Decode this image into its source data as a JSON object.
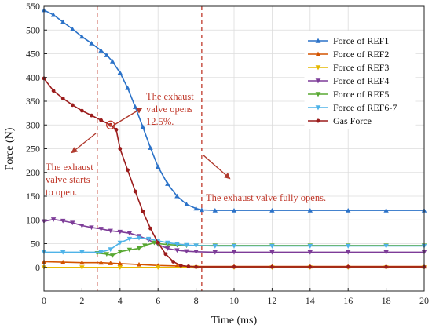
{
  "chart_data": {
    "type": "line",
    "xlabel": "Time (ms)",
    "ylabel": "Force (N)",
    "xlim": [
      0,
      20
    ],
    "ylim": [
      -50,
      550
    ],
    "xticks": [
      0,
      2,
      4,
      6,
      8,
      10,
      12,
      14,
      16,
      18,
      20
    ],
    "yticks": [
      0,
      50,
      100,
      150,
      200,
      250,
      300,
      350,
      400,
      450,
      500,
      550
    ],
    "grid": true,
    "legend_position": "top-right",
    "series": [
      {
        "name": "Force of REF1",
        "color": "#2b72c8",
        "marker": "triangle-up",
        "points": [
          [
            0,
            542
          ],
          [
            0.5,
            532
          ],
          [
            1,
            517
          ],
          [
            1.5,
            502
          ],
          [
            2,
            486
          ],
          [
            2.5,
            472
          ],
          [
            3,
            457
          ],
          [
            3.3,
            447
          ],
          [
            3.6,
            434
          ],
          [
            4,
            410
          ],
          [
            4.4,
            378
          ],
          [
            4.8,
            338
          ],
          [
            5.2,
            296
          ],
          [
            5.6,
            252
          ],
          [
            6,
            212
          ],
          [
            6.5,
            176
          ],
          [
            7,
            150
          ],
          [
            7.5,
            133
          ],
          [
            8,
            124
          ],
          [
            8.3,
            121
          ],
          [
            9,
            120
          ],
          [
            10,
            120
          ],
          [
            12,
            120
          ],
          [
            14,
            120
          ],
          [
            16,
            120
          ],
          [
            18,
            120
          ],
          [
            20,
            120
          ]
        ]
      },
      {
        "name": "Force of REF2",
        "color": "#d35400",
        "marker": "triangle-up",
        "points": [
          [
            0,
            12
          ],
          [
            1,
            11
          ],
          [
            2,
            10
          ],
          [
            3,
            10
          ],
          [
            3.5,
            9
          ],
          [
            4,
            8
          ],
          [
            5,
            6
          ],
          [
            6,
            4
          ],
          [
            7,
            3
          ],
          [
            8,
            2
          ],
          [
            10,
            2
          ],
          [
            12,
            2
          ],
          [
            14,
            2
          ],
          [
            16,
            2
          ],
          [
            18,
            2
          ],
          [
            20,
            2
          ]
        ]
      },
      {
        "name": "Force of REF3",
        "color": "#e6b800",
        "marker": "triangle-down",
        "points": [
          [
            0,
            0
          ],
          [
            2,
            0
          ],
          [
            4,
            0
          ],
          [
            6,
            0
          ],
          [
            8,
            0
          ],
          [
            10,
            0
          ],
          [
            12,
            0
          ],
          [
            14,
            0
          ],
          [
            16,
            0
          ],
          [
            18,
            0
          ],
          [
            20,
            0
          ]
        ]
      },
      {
        "name": "Force of REF4",
        "color": "#7d3c98",
        "marker": "triangle-down",
        "points": [
          [
            0,
            97
          ],
          [
            0.5,
            101
          ],
          [
            1,
            98
          ],
          [
            1.5,
            94
          ],
          [
            2,
            88
          ],
          [
            2.5,
            84
          ],
          [
            3,
            81
          ],
          [
            3.5,
            77
          ],
          [
            4,
            75
          ],
          [
            4.5,
            72
          ],
          [
            5,
            66
          ],
          [
            5.5,
            58
          ],
          [
            6,
            48
          ],
          [
            6.5,
            40
          ],
          [
            7,
            36
          ],
          [
            7.5,
            34
          ],
          [
            8,
            33
          ],
          [
            9,
            32
          ],
          [
            10,
            32
          ],
          [
            12,
            32
          ],
          [
            14,
            32
          ],
          [
            16,
            32
          ],
          [
            18,
            32
          ],
          [
            20,
            32
          ]
        ]
      },
      {
        "name": "Force of REF5",
        "color": "#58a832",
        "marker": "triangle-down",
        "points": [
          [
            2.8,
            30
          ],
          [
            3.3,
            28
          ],
          [
            3.6,
            25
          ],
          [
            4,
            33
          ],
          [
            4.5,
            37
          ],
          [
            5,
            40
          ],
          [
            5.3,
            46
          ],
          [
            5.8,
            52
          ],
          [
            6,
            50
          ],
          [
            6.5,
            48
          ],
          [
            7,
            47
          ],
          [
            7.5,
            46
          ],
          [
            8,
            46
          ],
          [
            9,
            46
          ],
          [
            10,
            46
          ],
          [
            12,
            46
          ],
          [
            14,
            46
          ],
          [
            16,
            46
          ],
          [
            18,
            46
          ],
          [
            20,
            46
          ]
        ]
      },
      {
        "name": "Force of REF6-7",
        "color": "#4fb3e8",
        "marker": "triangle-down",
        "points": [
          [
            0,
            32
          ],
          [
            1,
            32
          ],
          [
            2,
            32
          ],
          [
            3,
            32
          ],
          [
            3.5,
            38
          ],
          [
            4,
            52
          ],
          [
            4.5,
            60
          ],
          [
            5,
            62
          ],
          [
            5.5,
            60
          ],
          [
            6,
            56
          ],
          [
            6.5,
            52
          ],
          [
            7,
            49
          ],
          [
            7.5,
            47
          ],
          [
            8,
            46
          ],
          [
            9,
            45
          ],
          [
            10,
            45
          ],
          [
            12,
            45
          ],
          [
            14,
            45
          ],
          [
            16,
            45
          ],
          [
            18,
            45
          ],
          [
            20,
            45
          ]
        ]
      },
      {
        "name": "Gas Force",
        "color": "#9b1c1c",
        "marker": "circle",
        "points": [
          [
            0,
            398
          ],
          [
            0.5,
            372
          ],
          [
            1,
            356
          ],
          [
            1.5,
            342
          ],
          [
            2,
            330
          ],
          [
            2.5,
            320
          ],
          [
            3,
            310
          ],
          [
            3.5,
            300
          ],
          [
            3.8,
            290
          ],
          [
            4,
            250
          ],
          [
            4.4,
            205
          ],
          [
            4.8,
            160
          ],
          [
            5.2,
            118
          ],
          [
            5.6,
            82
          ],
          [
            6,
            52
          ],
          [
            6.4,
            28
          ],
          [
            6.8,
            12
          ],
          [
            7.2,
            4
          ],
          [
            7.6,
            2
          ],
          [
            8,
            1
          ],
          [
            10,
            1
          ],
          [
            12,
            1
          ],
          [
            14,
            1
          ],
          [
            16,
            1
          ],
          [
            18,
            1
          ],
          [
            20,
            1
          ]
        ]
      }
    ],
    "reference_lines": [
      {
        "x": 2.8,
        "color": "#c0392b",
        "style": "dashed"
      },
      {
        "x": 8.3,
        "color": "#c0392b",
        "style": "dashed"
      }
    ],
    "highlight_point": {
      "x": 3.5,
      "y": 300,
      "color": "#c0392b"
    },
    "annotations": [
      {
        "lines": [
          "The exhaust",
          "valve starts",
          "to open."
        ],
        "color": "#c0392b"
      },
      {
        "lines": [
          "The exhaust",
          "valve opens",
          "12.5%."
        ],
        "color": "#c0392b"
      },
      {
        "lines": [
          "The exhaust valve fully opens."
        ],
        "color": "#c0392b"
      }
    ]
  }
}
